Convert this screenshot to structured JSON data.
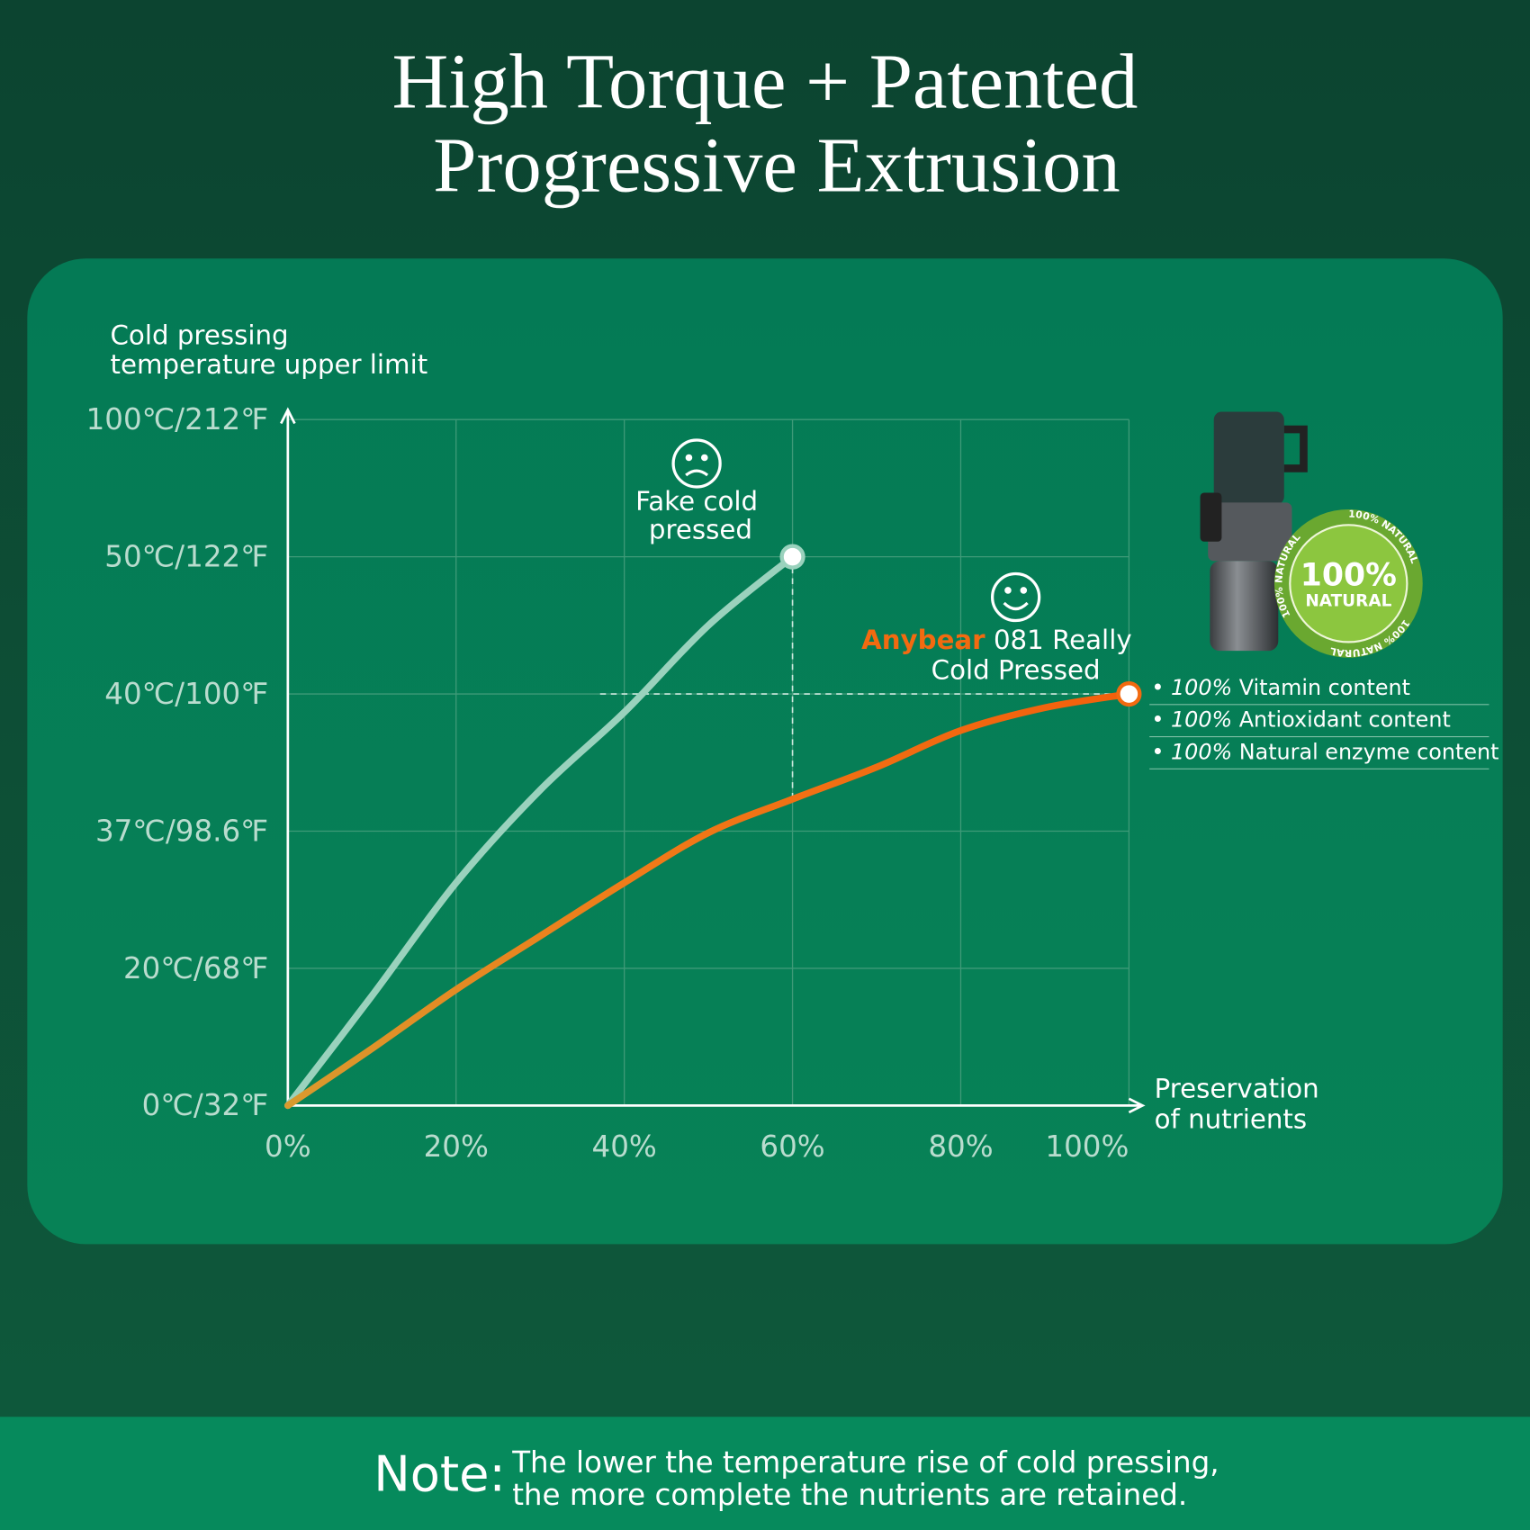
{
  "title": [
    "High Torque + Patented",
    "Progressive Extrusion"
  ],
  "chart_data": {
    "type": "line",
    "y_axis_title": [
      "Cold pressing",
      "temperature upper limit"
    ],
    "x_axis_title": [
      "Preservation",
      "of nutrients"
    ],
    "xlim": [
      0,
      100
    ],
    "xticks": [
      {
        "value": 0,
        "label": "0%"
      },
      {
        "value": 20,
        "label": "20%"
      },
      {
        "value": 40,
        "label": "40%"
      },
      {
        "value": 60,
        "label": "60%"
      },
      {
        "value": 80,
        "label": "80%"
      },
      {
        "value": 100,
        "label": "100%"
      }
    ],
    "y_scale": "piecewise-by-tick",
    "ylim": [
      0,
      100
    ],
    "yticks": [
      {
        "value": 0,
        "label": "0℃/32℉"
      },
      {
        "value": 20,
        "label": "20℃/68℉"
      },
      {
        "value": 37,
        "label": "37℃/98.6℉"
      },
      {
        "value": 40,
        "label": "40℃/100℉"
      },
      {
        "value": 50,
        "label": "50℃/122℉"
      },
      {
        "value": 100,
        "label": "100℃/212℉"
      }
    ],
    "grid": true,
    "series": [
      {
        "color": "#9ad2bd",
        "x": [
          0,
          10,
          20,
          30,
          40,
          50,
          60
        ],
        "values": [
          0,
          16,
          30.6,
          37.9,
          39.6,
          45,
          50
        ]
      },
      {
        "color": "#f26a10",
        "x": [
          0,
          10,
          20,
          30,
          40,
          50,
          60,
          70,
          80,
          90,
          100
        ],
        "values": [
          0,
          8.3,
          16.9,
          24,
          30.6,
          36.8,
          37.7,
          38.4,
          39.2,
          39.7,
          40
        ]
      }
    ],
    "annotations": {
      "fake": [
        "Fake cold",
        "pressed"
      ],
      "anybear": {
        "brand": "Anybear",
        "line1": "081 Really",
        "line2": "Cold Pressed"
      }
    }
  },
  "badge": {
    "big": "100%",
    "small": "NATURAL",
    "ring": "100% NATURAL"
  },
  "benefits": [
    {
      "pct": "100%",
      "text": "Vitamin content"
    },
    {
      "pct": "100%",
      "text": "Antioxidant content"
    },
    {
      "pct": "100%",
      "text": "Natural enzyme content"
    }
  ],
  "note": {
    "label": "Note:",
    "lines": [
      "The lower the temperature rise of cold pressing,",
      "the more complete the nutrients are retained."
    ]
  }
}
